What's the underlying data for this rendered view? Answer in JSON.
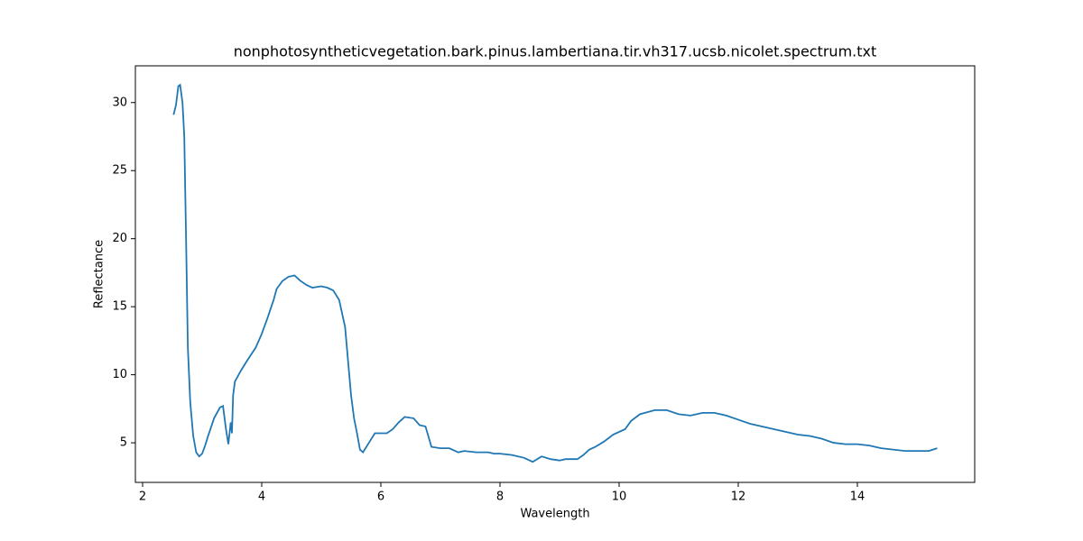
{
  "chart_data": {
    "type": "line",
    "title": "nonphotosyntheticvegetation.bark.pinus.lambertiana.tir.vh317.ucsb.nicolet.spectrum.txt",
    "x_label": "Wavelength",
    "y_label": "Reflectance",
    "xlim": [
      1.879,
      15.97
    ],
    "ylim": [
      2.09,
      32.7
    ],
    "xticks": [
      2,
      4,
      6,
      8,
      10,
      12,
      14
    ],
    "yticks": [
      5,
      10,
      15,
      20,
      25,
      30
    ],
    "series": [
      {
        "color": "#1f77b4",
        "x": [
          2.52,
          2.56,
          2.6,
          2.63,
          2.67,
          2.7,
          2.73,
          2.76,
          2.8,
          2.85,
          2.9,
          2.95,
          3.0,
          3.05,
          3.1,
          3.2,
          3.3,
          3.35,
          3.4,
          3.44,
          3.48,
          3.5,
          3.52,
          3.55,
          3.65,
          3.75,
          3.9,
          4.0,
          4.1,
          4.2,
          4.25,
          4.35,
          4.45,
          4.55,
          4.65,
          4.75,
          4.85,
          5.0,
          5.1,
          5.2,
          5.3,
          5.4,
          5.45,
          5.5,
          5.55,
          5.6,
          5.65,
          5.7,
          5.8,
          5.9,
          6.1,
          6.2,
          6.3,
          6.4,
          6.55,
          6.65,
          6.75,
          6.85,
          7.0,
          7.15,
          7.3,
          7.4,
          7.6,
          7.8,
          7.9,
          8.0,
          8.2,
          8.4,
          8.55,
          8.7,
          8.85,
          9.0,
          9.1,
          9.3,
          9.4,
          9.5,
          9.6,
          9.75,
          9.9,
          10.1,
          10.2,
          10.35,
          10.6,
          10.8,
          11.0,
          11.2,
          11.4,
          11.6,
          11.8,
          12.0,
          12.2,
          12.4,
          12.6,
          12.8,
          13.0,
          13.2,
          13.4,
          13.6,
          13.8,
          14.0,
          14.2,
          14.4,
          14.6,
          14.8,
          15.0,
          15.2,
          15.34
        ],
        "values": [
          29.1,
          29.8,
          31.2,
          31.3,
          30.0,
          27.5,
          20,
          12,
          8,
          5.5,
          4.3,
          4.0,
          4.2,
          4.8,
          5.5,
          6.8,
          7.6,
          7.7,
          6.0,
          4.9,
          6.5,
          5.7,
          8.5,
          9.5,
          10.3,
          11.0,
          12.0,
          13.0,
          14.2,
          15.5,
          16.3,
          16.9,
          17.2,
          17.3,
          16.9,
          16.6,
          16.4,
          16.5,
          16.4,
          16.2,
          15.5,
          13.5,
          11,
          8.5,
          6.8,
          5.7,
          4.5,
          4.3,
          5.0,
          5.7,
          5.7,
          6.0,
          6.5,
          6.9,
          6.8,
          6.3,
          6.2,
          4.7,
          4.6,
          4.6,
          4.3,
          4.4,
          4.3,
          4.3,
          4.2,
          4.2,
          4.1,
          3.9,
          3.6,
          4.0,
          3.8,
          3.7,
          3.8,
          3.8,
          4.1,
          4.5,
          4.7,
          5.1,
          5.6,
          6.0,
          6.6,
          7.1,
          7.4,
          7.4,
          7.1,
          7.0,
          7.2,
          7.2,
          7.0,
          6.7,
          6.4,
          6.2,
          6.0,
          5.8,
          5.6,
          5.5,
          5.3,
          5.0,
          4.9,
          4.9,
          4.8,
          4.6,
          4.5,
          4.4,
          4.4,
          4.4,
          4.6
        ]
      }
    ]
  }
}
